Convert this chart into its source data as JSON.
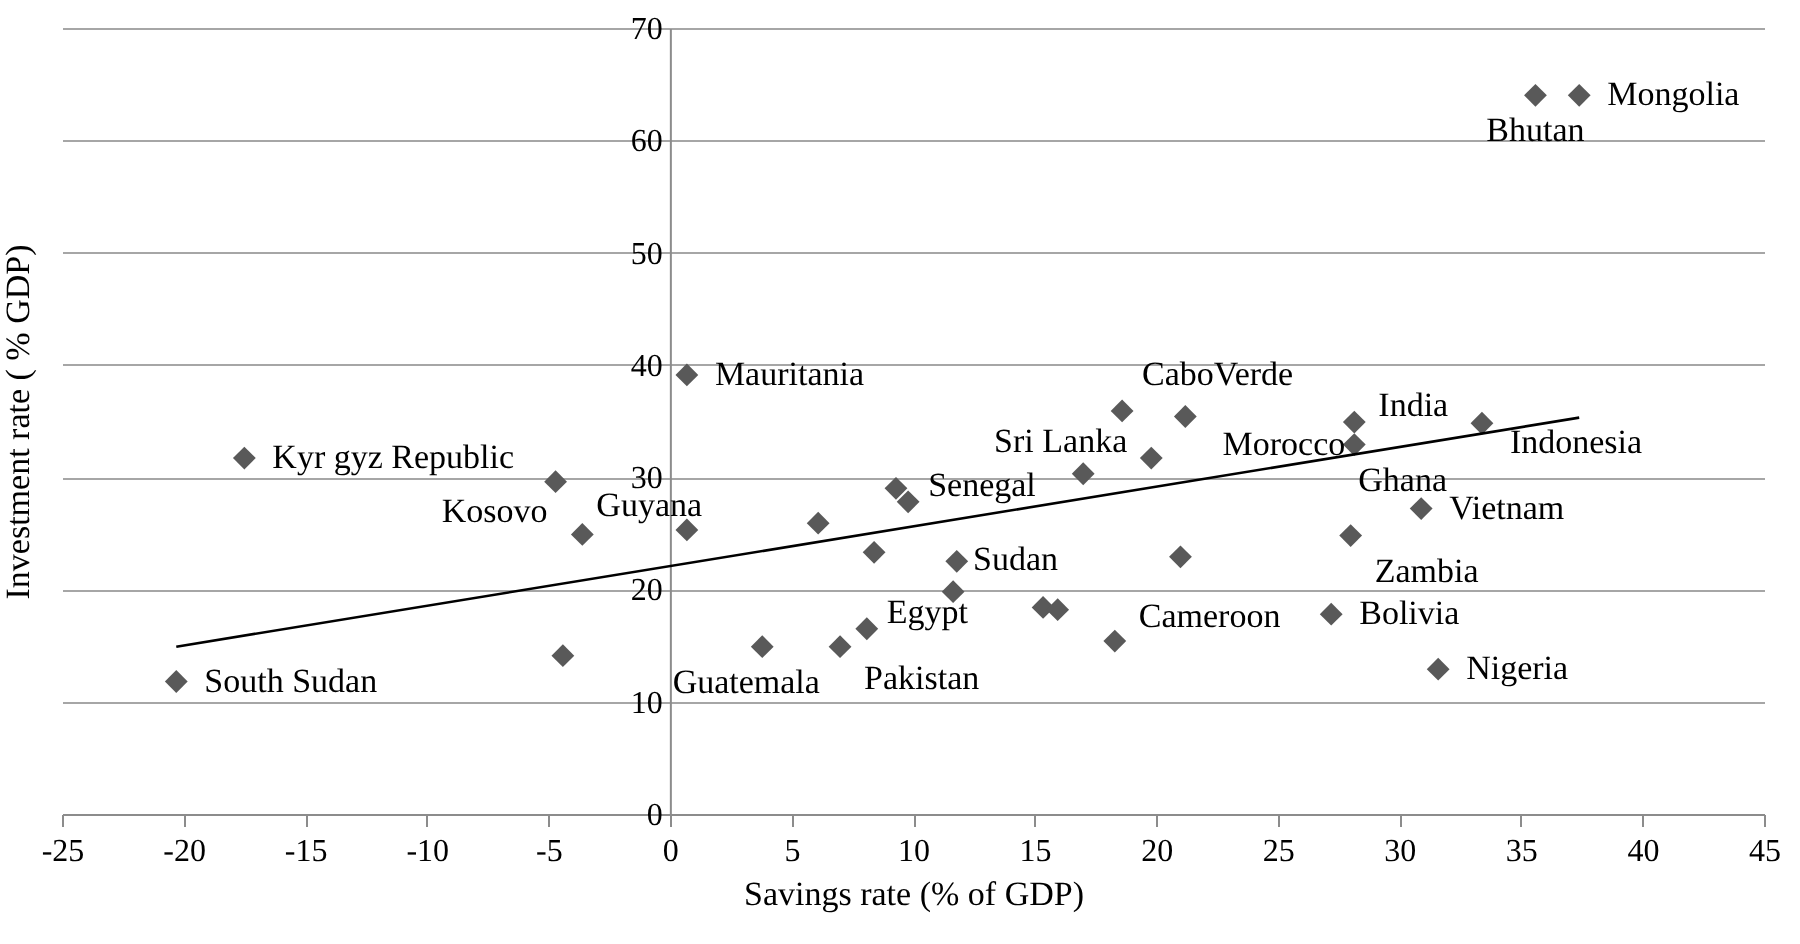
{
  "chart_data": {
    "type": "scatter",
    "xlabel": "Savings rate (% of GDP)",
    "ylabel": "Investment rate ( % GDP)",
    "xlim": [
      -25,
      45
    ],
    "xticks": [
      -25,
      -20,
      -15,
      -10,
      -5,
      0,
      5,
      10,
      15,
      20,
      25,
      30,
      35,
      40,
      45
    ],
    "ylim": [
      0,
      70
    ],
    "yticks": [
      0,
      10,
      20,
      30,
      40,
      50,
      60,
      70
    ],
    "grid": "y",
    "series": [
      {
        "color": "#595959",
        "marker": "diamond",
        "x": [
          -20.3,
          -17.5,
          -4.7,
          -3.6,
          -4.4,
          0.7,
          0.7,
          3.8,
          7.0,
          8.1,
          6.1,
          8.4,
          9.3,
          9.8,
          11.8,
          11.65,
          15.35,
          15.95,
          18.3,
          17.0,
          18.6,
          19.8,
          21.2,
          21.0,
          28.15,
          28.15,
          33.4,
          30.9,
          28.0,
          27.2,
          31.6,
          35.6,
          37.4
        ],
        "values": [
          11.8,
          31.7,
          29.6,
          24.9,
          14.1,
          39.1,
          25.3,
          14.9,
          14.9,
          16.5,
          25.9,
          23.3,
          29.0,
          27.8,
          22.5,
          19.8,
          18.4,
          18.2,
          15.4,
          30.3,
          35.9,
          31.7,
          35.4,
          22.9,
          34.9,
          32.9,
          34.8,
          27.2,
          24.8,
          17.8,
          12.9,
          64.0,
          64.0
        ]
      },
      {
        "type": "line",
        "color": "#000000",
        "marker": "none",
        "x": [
          -20.3,
          37.4
        ],
        "values": [
          14.9,
          35.3
        ]
      }
    ],
    "annotations": [
      {
        "text": "South Sudan",
        "x": -20.3,
        "y": 11.8
      },
      {
        "text": "Kyr gyz Republic",
        "x": -17.5,
        "y": 31.7
      },
      {
        "text": "Kosovo",
        "x": -4.7,
        "y": 29.6
      },
      {
        "text": "Guyana",
        "x": -3.6,
        "y": 24.9
      },
      {
        "text": "Mauritania",
        "x": 0.7,
        "y": 39.1
      },
      {
        "text": "Guatemala",
        "x": 3.8,
        "y": 14.9
      },
      {
        "text": "Pakistan",
        "x": 7.0,
        "y": 14.9
      },
      {
        "text": "Egypt",
        "x": 8.1,
        "y": 16.5
      },
      {
        "text": "Senegal",
        "x": 9.8,
        "y": 27.8
      },
      {
        "text": "Sudan",
        "x": 11.65,
        "y": 19.8
      },
      {
        "text": "Cameroon",
        "x": 18.3,
        "y": 15.4
      },
      {
        "text": "Sri Lanka",
        "x": 19.8,
        "y": 31.7
      },
      {
        "text": "CaboVerde",
        "x": 18.6,
        "y": 35.9
      },
      {
        "text": "Morocco",
        "x": 21.2,
        "y": 35.4
      },
      {
        "text": "India",
        "x": 28.15,
        "y": 34.9
      },
      {
        "text": "Ghana",
        "x": 28.15,
        "y": 32.9
      },
      {
        "text": "Indonesia",
        "x": 33.4,
        "y": 34.8
      },
      {
        "text": "Vietnam",
        "x": 30.9,
        "y": 27.2
      },
      {
        "text": "Zambia",
        "x": 28.0,
        "y": 24.8
      },
      {
        "text": "Bolivia",
        "x": 27.2,
        "y": 17.8
      },
      {
        "text": "Nigeria",
        "x": 31.6,
        "y": 12.9
      },
      {
        "text": "Bhutan",
        "x": 35.6,
        "y": 64.0
      },
      {
        "text": "Mongolia",
        "x": 37.4,
        "y": 64.0
      }
    ]
  }
}
